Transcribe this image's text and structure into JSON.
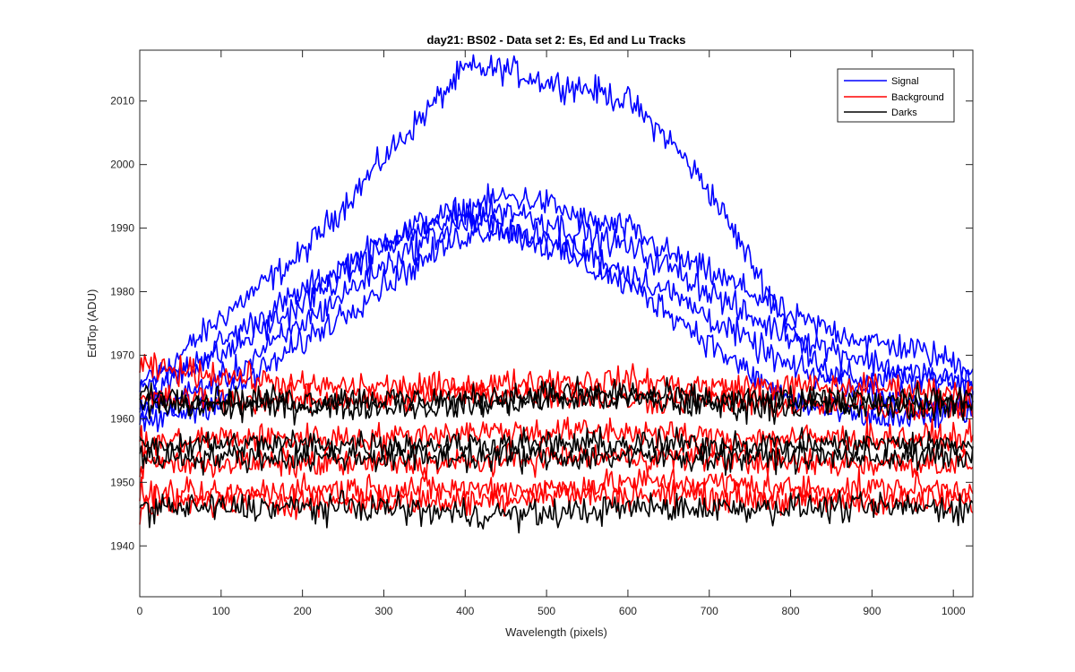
{
  "chart_data": {
    "type": "line",
    "title": "day21: BS02 - Data set 2: Es, Ed and Lu Tracks",
    "xlabel": "Wavelength (pixels)",
    "ylabel": "EdTop (ADU)",
    "xlim": [
      0,
      1024
    ],
    "ylim": [
      1932,
      2018
    ],
    "xticks": [
      0,
      100,
      200,
      300,
      400,
      500,
      600,
      700,
      800,
      900,
      1000
    ],
    "yticks": [
      1940,
      1950,
      1960,
      1970,
      1980,
      1990,
      2000,
      2010
    ],
    "grid": false,
    "legend_position": "top-right",
    "legend": [
      {
        "label": "Signal",
        "color": "#0000ff"
      },
      {
        "label": "Background",
        "color": "#ff0000"
      },
      {
        "label": "Darks",
        "color": "#000000"
      }
    ],
    "noise_amplitude": 2.2,
    "series": [
      {
        "group": "Signal",
        "color": "#0000ff",
        "x": [
          0,
          100,
          200,
          300,
          350,
          400,
          450,
          500,
          550,
          600,
          650,
          700,
          750,
          800,
          850,
          900,
          950,
          1000,
          1024
        ],
        "y": [
          1964,
          1976,
          1986,
          2001,
          2008,
          2015,
          2015,
          2013,
          2012,
          2010,
          2004,
          1996,
          1985,
          1974,
          1967,
          1966,
          1966,
          1966,
          1966
        ]
      },
      {
        "group": "Signal",
        "color": "#0000ff",
        "x": [
          0,
          100,
          200,
          300,
          350,
          400,
          450,
          500,
          550,
          600,
          650,
          700,
          750,
          800,
          850,
          900,
          950,
          1000,
          1024
        ],
        "y": [
          1962,
          1972,
          1980,
          1988,
          1991,
          1993,
          1995,
          1994,
          1991,
          1990,
          1986,
          1983,
          1980,
          1976,
          1974,
          1972,
          1971,
          1969,
          1968
        ]
      },
      {
        "group": "Signal",
        "color": "#0000ff",
        "x": [
          0,
          100,
          200,
          300,
          350,
          400,
          450,
          500,
          550,
          600,
          650,
          700,
          750,
          800,
          850,
          900,
          950,
          1000,
          1024
        ],
        "y": [
          1966,
          1970,
          1978,
          1987,
          1990,
          1992,
          1993,
          1991,
          1989,
          1987,
          1984,
          1980,
          1976,
          1973,
          1971,
          1969,
          1967,
          1966,
          1965
        ]
      },
      {
        "group": "Signal",
        "color": "#0000ff",
        "x": [
          0,
          100,
          200,
          300,
          350,
          400,
          450,
          500,
          550,
          600,
          650,
          700,
          750,
          800,
          850,
          900,
          950,
          1000,
          1024
        ],
        "y": [
          1961,
          1966,
          1975,
          1984,
          1988,
          1991,
          1990,
          1988,
          1986,
          1983,
          1980,
          1976,
          1972,
          1968,
          1966,
          1964,
          1963,
          1962,
          1962
        ]
      },
      {
        "group": "Signal",
        "color": "#0000ff",
        "x": [
          0,
          100,
          200,
          300,
          350,
          400,
          450,
          500,
          550,
          600,
          650,
          700,
          750,
          800,
          850,
          900,
          950,
          1000,
          1024
        ],
        "y": [
          1959,
          1963,
          1972,
          1981,
          1985,
          1989,
          1990,
          1987,
          1984,
          1981,
          1977,
          1972,
          1967,
          1963,
          1961,
          1960,
          1960,
          1961,
          1961
        ]
      },
      {
        "group": "Background",
        "color": "#ff0000",
        "x": [
          0,
          100,
          200,
          300,
          400,
          500,
          600,
          700,
          800,
          900,
          1024
        ],
        "y": [
          1968,
          1967,
          1965,
          1965,
          1965,
          1966,
          1966,
          1965,
          1965,
          1965,
          1964
        ]
      },
      {
        "group": "Background",
        "color": "#ff0000",
        "x": [
          0,
          100,
          200,
          300,
          400,
          500,
          600,
          700,
          800,
          900,
          1024
        ],
        "y": [
          1963,
          1963,
          1963,
          1963,
          1964,
          1964,
          1963,
          1963,
          1962,
          1962,
          1962
        ]
      },
      {
        "group": "Background",
        "color": "#ff0000",
        "x": [
          0,
          100,
          200,
          300,
          400,
          500,
          600,
          700,
          800,
          900,
          1024
        ],
        "y": [
          1956,
          1957,
          1957,
          1957,
          1958,
          1958,
          1958,
          1957,
          1957,
          1957,
          1957
        ]
      },
      {
        "group": "Background",
        "color": "#ff0000",
        "x": [
          0,
          100,
          200,
          300,
          400,
          500,
          600,
          700,
          800,
          900,
          1024
        ],
        "y": [
          1953,
          1953,
          1953,
          1953,
          1953,
          1954,
          1954,
          1954,
          1953,
          1953,
          1953
        ]
      },
      {
        "group": "Background",
        "color": "#ff0000",
        "x": [
          0,
          100,
          200,
          300,
          400,
          500,
          600,
          700,
          800,
          900,
          1024
        ],
        "y": [
          1948,
          1948,
          1949,
          1949,
          1949,
          1949,
          1950,
          1950,
          1949,
          1949,
          1949
        ]
      },
      {
        "group": "Background",
        "color": "#ff0000",
        "x": [
          0,
          100,
          200,
          300,
          400,
          500,
          600,
          700,
          800,
          900,
          1024
        ],
        "y": [
          1946,
          1947,
          1947,
          1947,
          1947,
          1948,
          1948,
          1948,
          1947,
          1947,
          1947
        ]
      },
      {
        "group": "Darks",
        "color": "#000000",
        "x": [
          0,
          100,
          200,
          300,
          400,
          500,
          600,
          700,
          800,
          900,
          1024
        ],
        "y": [
          1964,
          1963,
          1963,
          1963,
          1963,
          1964,
          1964,
          1963,
          1963,
          1963,
          1963
        ]
      },
      {
        "group": "Darks",
        "color": "#000000",
        "x": [
          0,
          100,
          200,
          300,
          400,
          500,
          600,
          700,
          800,
          900,
          1024
        ],
        "y": [
          1962,
          1962,
          1962,
          1962,
          1962,
          1963,
          1963,
          1962,
          1962,
          1962,
          1962
        ]
      },
      {
        "group": "Darks",
        "color": "#000000",
        "x": [
          0,
          100,
          200,
          300,
          400,
          500,
          600,
          700,
          800,
          900,
          1024
        ],
        "y": [
          1956,
          1956,
          1956,
          1956,
          1956,
          1956,
          1956,
          1956,
          1956,
          1956,
          1956
        ]
      },
      {
        "group": "Darks",
        "color": "#000000",
        "x": [
          0,
          100,
          200,
          300,
          400,
          500,
          600,
          700,
          800,
          900,
          1024
        ],
        "y": [
          1954,
          1954,
          1954,
          1954,
          1954,
          1954,
          1954,
          1954,
          1954,
          1954,
          1954
        ]
      },
      {
        "group": "Darks",
        "color": "#000000",
        "x": [
          0,
          100,
          200,
          300,
          400,
          500,
          600,
          700,
          800,
          900,
          1024
        ],
        "y": [
          1946,
          1946,
          1946,
          1946,
          1945,
          1945,
          1946,
          1946,
          1946,
          1946,
          1946
        ]
      }
    ]
  }
}
